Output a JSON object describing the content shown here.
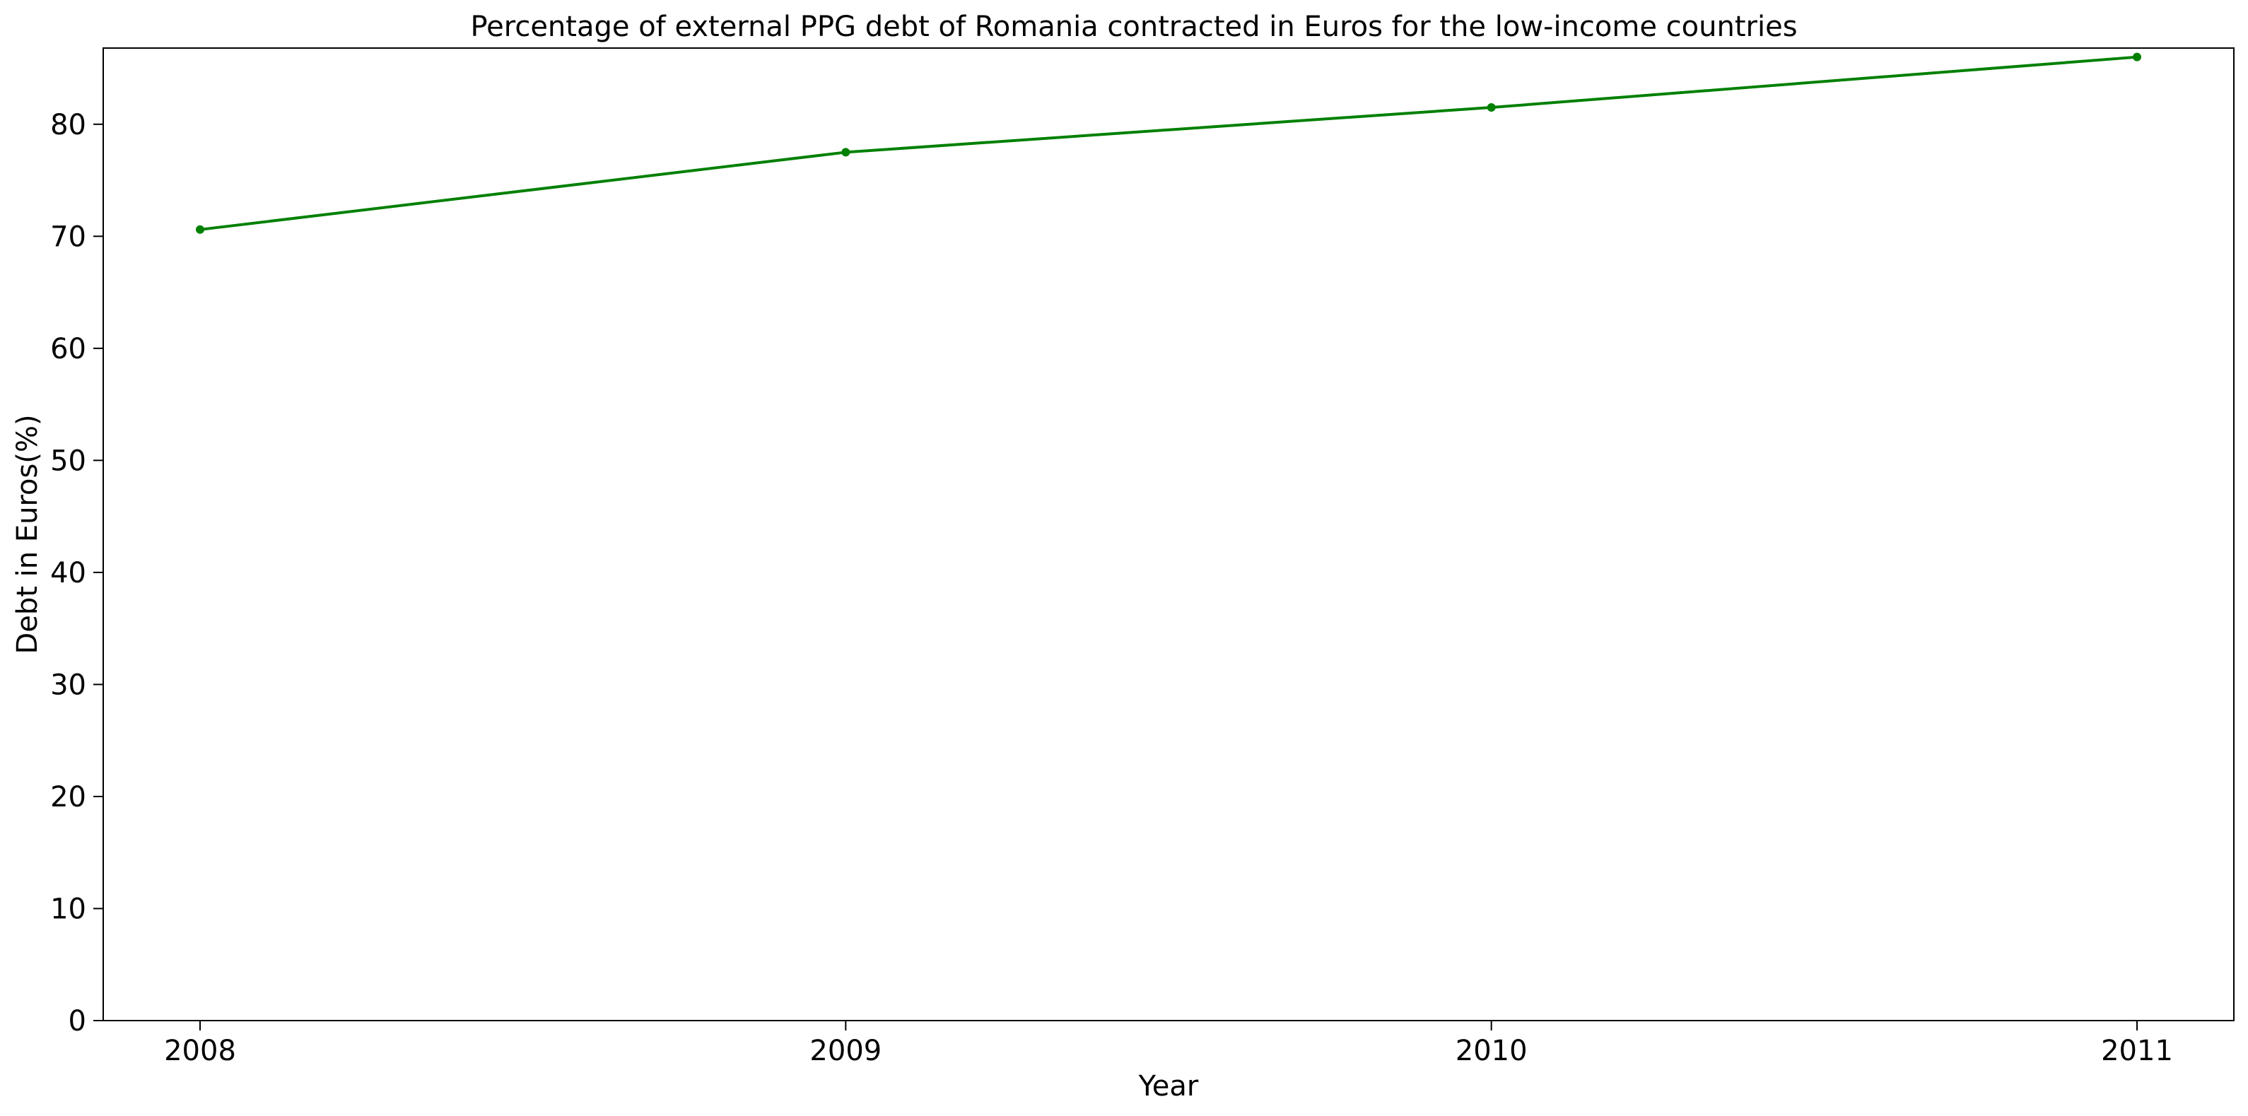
{
  "chart_data": {
    "type": "line",
    "title": "Percentage of external PPG debt of Romania contracted in Euros for the low-income countries",
    "xlabel": "Year",
    "ylabel": "Debt in Euros(%)",
    "x": [
      2008,
      2009,
      2010,
      2011
    ],
    "xticks": [
      "2008",
      "2009",
      "2010",
      "2011"
    ],
    "yticks": [
      "0",
      "10",
      "20",
      "30",
      "40",
      "50",
      "60",
      "70",
      "80"
    ],
    "ylim": [
      0,
      86.8
    ],
    "xlim": [
      2007.85,
      2011.15
    ],
    "grid": false,
    "legend": "none",
    "series": [
      {
        "values": [
          70.6,
          77.5,
          81.5,
          86.0
        ],
        "color": "#008000",
        "marker": "circle"
      }
    ]
  }
}
